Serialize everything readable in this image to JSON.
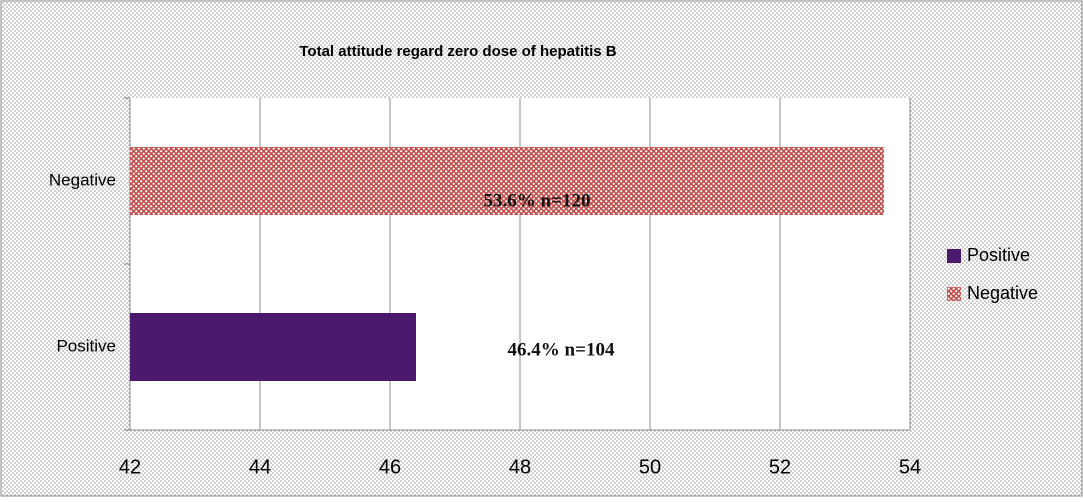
{
  "chart_data": {
    "type": "hbar",
    "title": "Total attitude regard zero dose of hepatitis B",
    "categories": [
      "Positive",
      "Negative"
    ],
    "series": [
      {
        "name": "Positive",
        "color": "#4b1a6e",
        "fill_style": "solid",
        "values": [
          46.4,
          null
        ],
        "value_labels": [
          "46.4% n=104",
          null
        ]
      },
      {
        "name": "Negative",
        "color": "#c0504d",
        "fill_style": "dotted",
        "values": [
          null,
          53.6
        ],
        "value_labels": [
          null,
          "53.6% n=120"
        ]
      }
    ],
    "xlim": [
      42,
      54
    ],
    "xticks": [
      42,
      44,
      46,
      48,
      50,
      52,
      54
    ],
    "grid": true,
    "legend": "right"
  }
}
